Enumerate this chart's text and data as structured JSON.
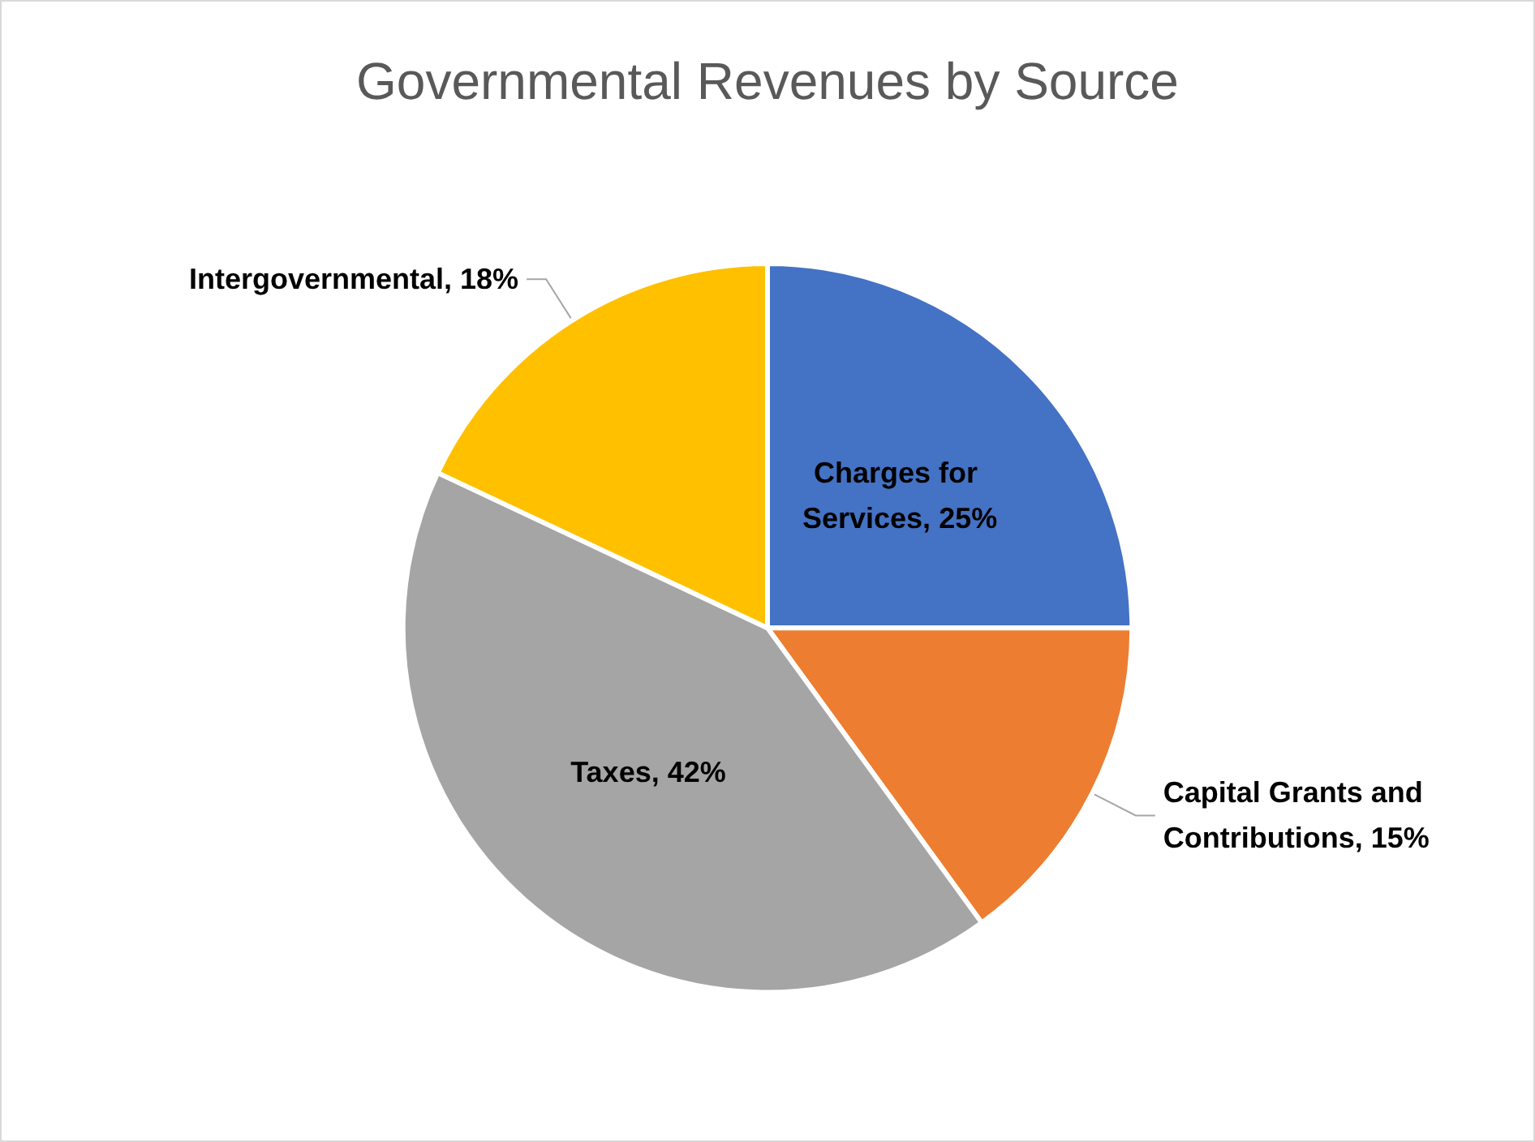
{
  "chart_data": {
    "type": "pie",
    "title": "Governmental Revenues by Source",
    "categories": [
      "Charges for Services",
      "Capital Grants and Contributions",
      "Taxes",
      "Intergovernmental"
    ],
    "values": [
      25,
      15,
      42,
      18
    ],
    "value_labels": [
      "25%",
      "15%",
      "42%",
      "18%"
    ],
    "colors": [
      "#4472c4",
      "#ed7d31",
      "#a5a5a5",
      "#ffc000"
    ],
    "legend": false
  }
}
